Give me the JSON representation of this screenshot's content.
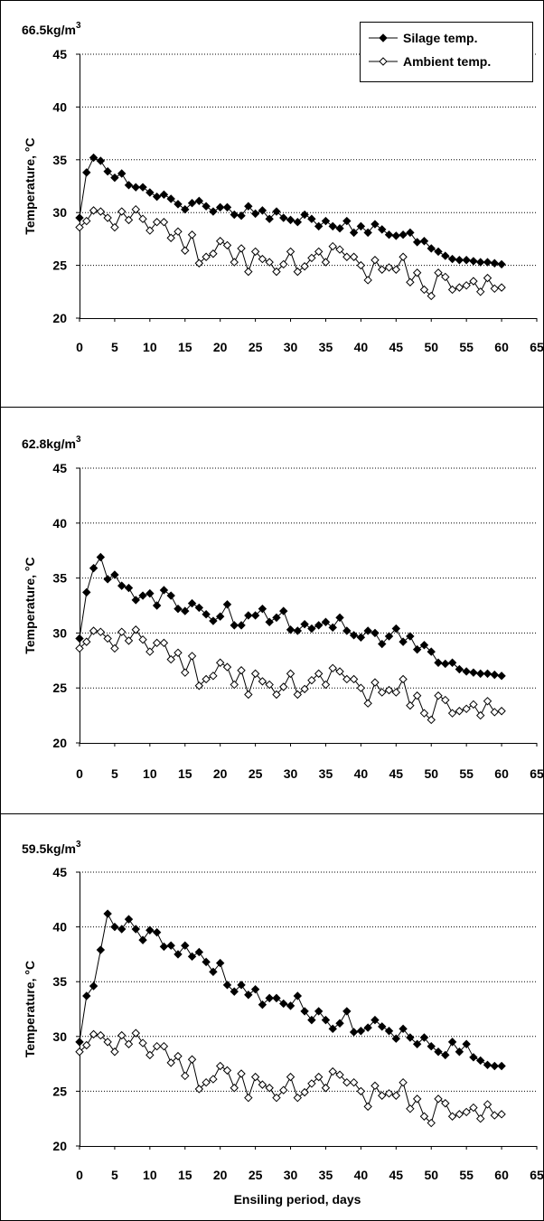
{
  "chart_data": [
    {
      "type": "line",
      "density_value": "66.5kg/m",
      "density_exponent": "3",
      "ylabel": "Temperature, °C",
      "ylim": [
        20,
        45
      ],
      "yticks": [
        20,
        25,
        30,
        35,
        40,
        45
      ],
      "xlim": [
        0,
        65
      ],
      "xticks": [
        0,
        5,
        10,
        15,
        20,
        25,
        30,
        35,
        40,
        45,
        50,
        55,
        60,
        65
      ],
      "grid": "horizontal dotted",
      "legend": "top-right",
      "x": [
        0,
        1,
        2,
        3,
        4,
        5,
        6,
        7,
        8,
        9,
        10,
        11,
        12,
        13,
        14,
        15,
        16,
        17,
        18,
        19,
        20,
        21,
        22,
        23,
        24,
        25,
        26,
        27,
        28,
        29,
        30,
        31,
        32,
        33,
        34,
        35,
        36,
        37,
        38,
        39,
        40,
        41,
        42,
        43,
        44,
        45,
        46,
        47,
        48,
        49,
        50,
        51,
        52,
        53,
        54,
        55,
        56,
        57,
        58,
        59,
        60
      ],
      "series": [
        {
          "name": "Silage temp.",
          "marker": "filled-diamond",
          "values": [
            29.5,
            33.8,
            35.2,
            34.9,
            33.9,
            33.3,
            33.7,
            32.6,
            32.4,
            32.4,
            31.9,
            31.5,
            31.7,
            31.3,
            30.8,
            30.3,
            30.9,
            31.1,
            30.6,
            30.1,
            30.5,
            30.5,
            29.8,
            29.7,
            30.6,
            29.9,
            30.2,
            29.4,
            30.1,
            29.5,
            29.3,
            29.1,
            29.8,
            29.4,
            28.7,
            29.2,
            28.7,
            28.5,
            29.2,
            28.1,
            28.7,
            28.1,
            28.9,
            28.4,
            27.9,
            27.8,
            27.9,
            28.1,
            27.2,
            27.3,
            26.6,
            26.3,
            25.9,
            25.6,
            25.5,
            25.5,
            25.4,
            25.3,
            25.3,
            25.2,
            25.1
          ]
        },
        {
          "name": "Ambient temp.",
          "marker": "open-diamond",
          "values": [
            28.6,
            29.2,
            30.2,
            30.1,
            29.5,
            28.6,
            30.1,
            29.3,
            30.3,
            29.4,
            28.3,
            29.1,
            29.1,
            27.6,
            28.2,
            26.4,
            27.9,
            25.2,
            25.8,
            26.1,
            27.3,
            26.9,
            25.3,
            26.6,
            24.4,
            26.3,
            25.6,
            25.3,
            24.4,
            25.1,
            26.3,
            24.4,
            24.9,
            25.7,
            26.3,
            25.3,
            26.8,
            26.5,
            25.8,
            25.8,
            25.0,
            23.6,
            25.5,
            24.6,
            24.8,
            24.6,
            25.8,
            23.4,
            24.3,
            22.7,
            22.1,
            24.3,
            23.9,
            22.7,
            22.9,
            23.1,
            23.5,
            22.5,
            23.8,
            22.8,
            22.9
          ]
        }
      ]
    },
    {
      "type": "line",
      "density_value": "62.8kg/m",
      "density_exponent": "3",
      "ylabel": "Temperature, °C",
      "ylim": [
        20,
        45
      ],
      "yticks": [
        20,
        25,
        30,
        35,
        40,
        45
      ],
      "xlim": [
        0,
        65
      ],
      "xticks": [
        0,
        5,
        10,
        15,
        20,
        25,
        30,
        35,
        40,
        45,
        50,
        55,
        60,
        65
      ],
      "grid": "horizontal dotted",
      "x": [
        0,
        1,
        2,
        3,
        4,
        5,
        6,
        7,
        8,
        9,
        10,
        11,
        12,
        13,
        14,
        15,
        16,
        17,
        18,
        19,
        20,
        21,
        22,
        23,
        24,
        25,
        26,
        27,
        28,
        29,
        30,
        31,
        32,
        33,
        34,
        35,
        36,
        37,
        38,
        39,
        40,
        41,
        42,
        43,
        44,
        45,
        46,
        47,
        48,
        49,
        50,
        51,
        52,
        53,
        54,
        55,
        56,
        57,
        58,
        59,
        60
      ],
      "series": [
        {
          "name": "Silage temp.",
          "marker": "filled-diamond",
          "values": [
            29.5,
            33.7,
            35.9,
            36.9,
            34.9,
            35.3,
            34.3,
            34.1,
            33.0,
            33.4,
            33.6,
            32.5,
            33.9,
            33.4,
            32.2,
            32.0,
            32.7,
            32.3,
            31.7,
            31.1,
            31.5,
            32.6,
            30.7,
            30.7,
            31.6,
            31.6,
            32.2,
            31.0,
            31.4,
            32.0,
            30.3,
            30.2,
            30.8,
            30.4,
            30.7,
            31.0,
            30.5,
            31.4,
            30.2,
            29.8,
            29.6,
            30.2,
            30.0,
            29.0,
            29.7,
            30.4,
            29.2,
            29.7,
            28.5,
            28.9,
            28.3,
            27.3,
            27.2,
            27.3,
            26.7,
            26.5,
            26.4,
            26.3,
            26.3,
            26.2,
            26.1
          ]
        },
        {
          "name": "Ambient temp.",
          "marker": "open-diamond",
          "values": [
            28.6,
            29.2,
            30.2,
            30.1,
            29.5,
            28.6,
            30.1,
            29.3,
            30.3,
            29.4,
            28.3,
            29.1,
            29.1,
            27.6,
            28.2,
            26.4,
            27.9,
            25.2,
            25.8,
            26.1,
            27.3,
            26.9,
            25.3,
            26.6,
            24.4,
            26.3,
            25.6,
            25.3,
            24.4,
            25.1,
            26.3,
            24.4,
            24.9,
            25.7,
            26.3,
            25.3,
            26.8,
            26.5,
            25.8,
            25.8,
            25.0,
            23.6,
            25.5,
            24.6,
            24.8,
            24.6,
            25.8,
            23.4,
            24.3,
            22.7,
            22.1,
            24.3,
            23.9,
            22.7,
            22.9,
            23.1,
            23.5,
            22.5,
            23.8,
            22.8,
            22.9
          ]
        }
      ]
    },
    {
      "type": "line",
      "density_value": "59.5kg/m",
      "density_exponent": "3",
      "ylabel": "Temperature, °C",
      "xlabel": "Ensiling period, days",
      "ylim": [
        20,
        45
      ],
      "yticks": [
        20,
        25,
        30,
        35,
        40,
        45
      ],
      "xlim": [
        0,
        65
      ],
      "xticks": [
        0,
        5,
        10,
        15,
        20,
        25,
        30,
        35,
        40,
        45,
        50,
        55,
        60,
        65
      ],
      "grid": "horizontal dotted",
      "x": [
        0,
        1,
        2,
        3,
        4,
        5,
        6,
        7,
        8,
        9,
        10,
        11,
        12,
        13,
        14,
        15,
        16,
        17,
        18,
        19,
        20,
        21,
        22,
        23,
        24,
        25,
        26,
        27,
        28,
        29,
        30,
        31,
        32,
        33,
        34,
        35,
        36,
        37,
        38,
        39,
        40,
        41,
        42,
        43,
        44,
        45,
        46,
        47,
        48,
        49,
        50,
        51,
        52,
        53,
        54,
        55,
        56,
        57,
        58,
        59,
        60
      ],
      "series": [
        {
          "name": "Silage temp.",
          "marker": "filled-diamond",
          "values": [
            29.5,
            33.7,
            34.6,
            37.9,
            41.2,
            40.0,
            39.8,
            40.7,
            39.8,
            38.8,
            39.7,
            39.5,
            38.2,
            38.3,
            37.5,
            38.3,
            37.3,
            37.7,
            36.8,
            35.9,
            36.7,
            34.7,
            34.1,
            34.7,
            33.8,
            34.3,
            32.9,
            33.5,
            33.5,
            33.0,
            32.8,
            33.7,
            32.3,
            31.5,
            32.3,
            31.5,
            30.7,
            31.2,
            32.3,
            30.4,
            30.5,
            30.8,
            31.5,
            30.9,
            30.5,
            29.8,
            30.7,
            29.9,
            29.3,
            29.9,
            29.1,
            28.6,
            28.3,
            29.5,
            28.6,
            29.3,
            28.1,
            27.8,
            27.4,
            27.3,
            27.3
          ]
        },
        {
          "name": "Ambient temp.",
          "marker": "open-diamond",
          "values": [
            28.6,
            29.2,
            30.2,
            30.1,
            29.5,
            28.6,
            30.1,
            29.3,
            30.3,
            29.4,
            28.3,
            29.1,
            29.1,
            27.6,
            28.2,
            26.4,
            27.9,
            25.2,
            25.8,
            26.1,
            27.3,
            26.9,
            25.3,
            26.6,
            24.4,
            26.3,
            25.6,
            25.3,
            24.4,
            25.1,
            26.3,
            24.4,
            24.9,
            25.7,
            26.3,
            25.3,
            26.8,
            26.5,
            25.8,
            25.8,
            25.0,
            23.6,
            25.5,
            24.6,
            24.8,
            24.6,
            25.8,
            23.4,
            24.3,
            22.7,
            22.1,
            24.3,
            23.9,
            22.7,
            22.9,
            23.1,
            23.5,
            22.5,
            23.8,
            22.8,
            22.9
          ]
        }
      ]
    }
  ],
  "colors": {
    "silage": "#000000",
    "ambient": "#ffffff",
    "grid": "#000000",
    "background": "#ffffff"
  }
}
